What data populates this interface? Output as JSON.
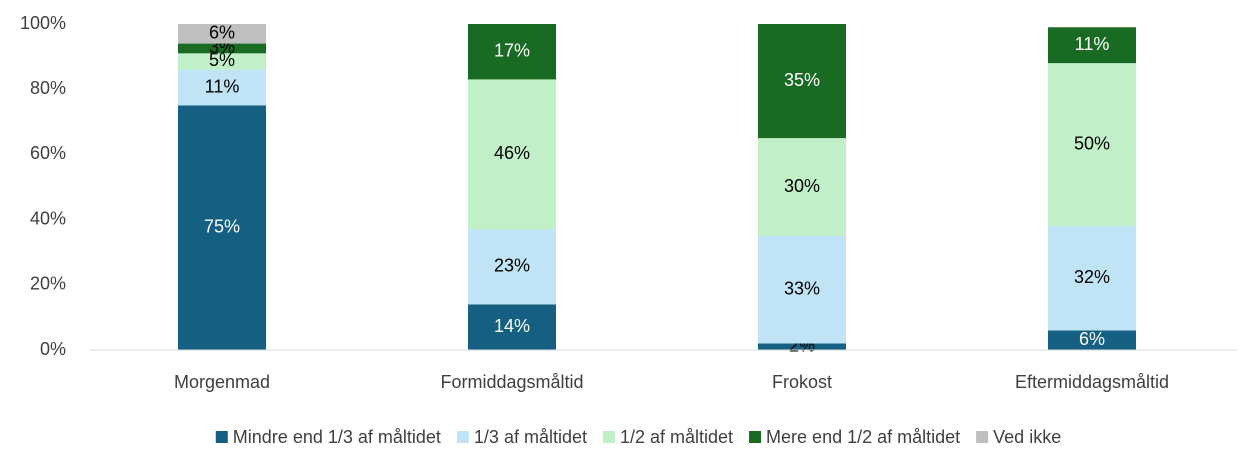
{
  "chart_data": {
    "type": "stacked_bar",
    "categories": [
      "Morgenmad",
      "Formiddagsmåltid",
      "Frokost",
      "Eftermiddagsmåltid"
    ],
    "series": [
      {
        "name": "Mindre end 1/3 af måltidet",
        "color": "#156082",
        "values": [
          75,
          14,
          2,
          6
        ],
        "value_labels": [
          "75%",
          "14%",
          "2%",
          "6%"
        ]
      },
      {
        "name": "1/3 af måltidet",
        "color": "#c0e4f5",
        "values": [
          11,
          23,
          33,
          32
        ],
        "value_labels": [
          "11%",
          "23%",
          "33%",
          "32%"
        ]
      },
      {
        "name": "1/2 af måltidet",
        "color": "#c1f0c8",
        "values": [
          5,
          46,
          30,
          50
        ],
        "value_labels": [
          "5%",
          "46%",
          "30%",
          "50%"
        ]
      },
      {
        "name": "Mere end 1/2 af måltidet",
        "color": "#196b24",
        "values": [
          3,
          17,
          35,
          11
        ],
        "value_labels": [
          "3%",
          "17%",
          "35%",
          "11%"
        ]
      },
      {
        "name": "Ved ikke",
        "color": "#bfbfbf",
        "values": [
          6,
          null,
          null,
          null
        ],
        "value_labels": [
          "6%",
          null,
          null,
          null
        ]
      }
    ],
    "ylim": [
      0,
      100
    ],
    "yticks": [
      {
        "value": 0,
        "label": "0%"
      },
      {
        "value": 20,
        "label": "20%"
      },
      {
        "value": 40,
        "label": "40%"
      },
      {
        "value": 60,
        "label": "60%"
      },
      {
        "value": 80,
        "label": "80%"
      },
      {
        "value": 100,
        "label": "100%"
      }
    ],
    "legend": "bottom"
  }
}
